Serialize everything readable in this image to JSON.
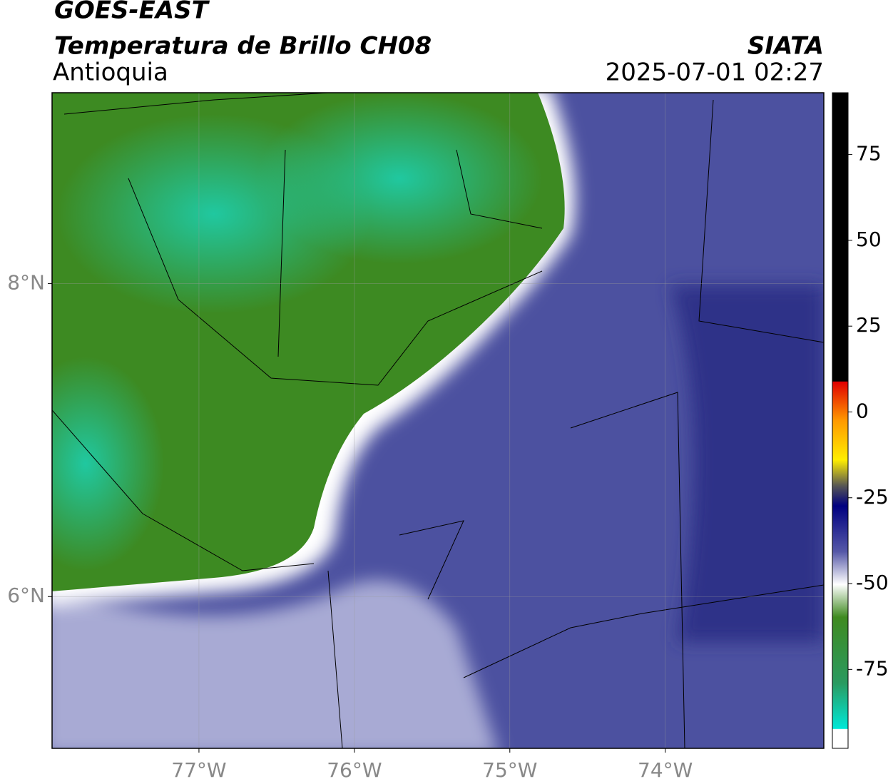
{
  "header": {
    "title": "GOES-EAST",
    "subtitle": "Temperatura de Brillo CH08",
    "region": "Antioquia",
    "source": "SIATA",
    "datetime": "2025-07-01 02:27"
  },
  "map": {
    "xlim": [
      -77.945,
      -72.98
    ],
    "ylim": [
      5.03,
      9.22
    ],
    "xticks": [
      {
        "value": -77,
        "label": "77°W"
      },
      {
        "value": -76,
        "label": "76°W"
      },
      {
        "value": -75,
        "label": "75°W"
      },
      {
        "value": -74,
        "label": "74°W"
      }
    ],
    "yticks": [
      {
        "value": 8,
        "label": "8°N"
      },
      {
        "value": 6,
        "label": "6°N"
      }
    ],
    "grid": true
  },
  "colorbar": {
    "lim": [
      -98,
      93
    ],
    "ticks": [
      75,
      50,
      25,
      0,
      -25,
      -50,
      -75
    ]
  }
}
